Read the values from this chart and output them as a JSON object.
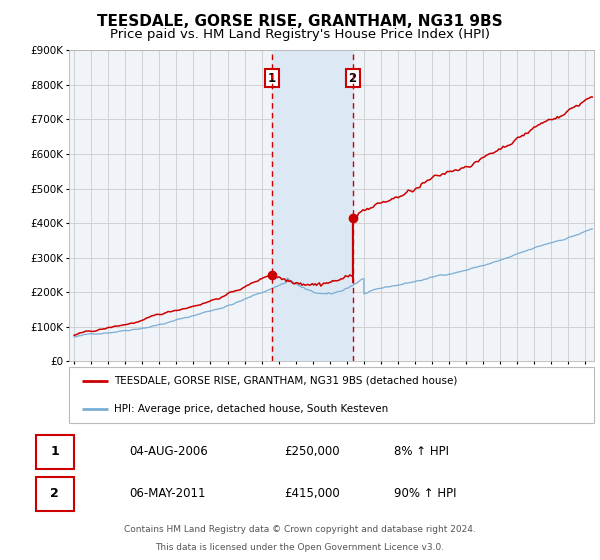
{
  "title": "TEESDALE, GORSE RISE, GRANTHAM, NG31 9BS",
  "subtitle": "Price paid vs. HM Land Registry's House Price Index (HPI)",
  "title_fontsize": 11,
  "subtitle_fontsize": 9.5,
  "background_color": "#ffffff",
  "plot_bg_color": "#f0f4f8",
  "grid_color": "#cccccc",
  "ylim": [
    0,
    900000
  ],
  "yticks": [
    0,
    100000,
    200000,
    300000,
    400000,
    500000,
    600000,
    700000,
    800000,
    900000
  ],
  "ytick_labels": [
    "£0",
    "£100K",
    "£200K",
    "£300K",
    "£400K",
    "£500K",
    "£600K",
    "£700K",
    "£800K",
    "£900K"
  ],
  "sale1_x": 2006.587,
  "sale1_price": 250000,
  "sale1_label": "1",
  "sale2_x": 2011.338,
  "sale2_price": 415000,
  "sale2_label": "2",
  "shade_color": "#dce9f5",
  "dashed_color": "#cc0000",
  "red_line_color": "#cc0000",
  "blue_line_color": "#7aadd4",
  "marker_color": "#cc0000",
  "legend_red_label": "TEESDALE, GORSE RISE, GRANTHAM, NG31 9BS (detached house)",
  "legend_blue_label": "HPI: Average price, detached house, South Kesteven",
  "table_row1": [
    "1",
    "04-AUG-2006",
    "£250,000",
    "8% ↑ HPI"
  ],
  "table_row2": [
    "2",
    "06-MAY-2011",
    "£415,000",
    "90% ↑ HPI"
  ],
  "footnote1": "Contains HM Land Registry data © Crown copyright and database right 2024.",
  "footnote2": "This data is licensed under the Open Government Licence v3.0.",
  "xlim_start": 1994.7,
  "xlim_end": 2025.5
}
